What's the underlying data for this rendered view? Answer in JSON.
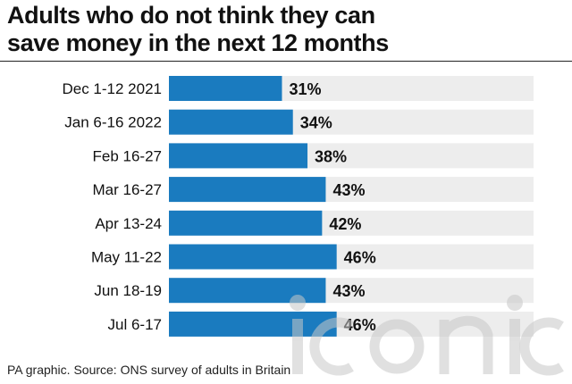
{
  "title_line1": "Adults who do not think they can",
  "title_line2": "save money in the next 12 months",
  "source": "PA graphic. Source: ONS survey of adults in Britain",
  "watermark_text": "iconic",
  "colors": {
    "bar": "#1a7bbf",
    "track": "#ededed",
    "text": "#111111"
  },
  "chart_data": {
    "type": "bar",
    "orientation": "horizontal",
    "title": "Adults who do not think they can save money in the next 12 months",
    "categories": [
      "Dec 1-12 2021",
      "Jan 6-16 2022",
      "Feb 16-27",
      "Mar 16-27",
      "Apr 13-24",
      "May 11-22",
      "Jun 18-19",
      "Jul 6-17"
    ],
    "values": [
      31,
      34,
      38,
      43,
      42,
      46,
      43,
      46
    ],
    "value_labels": [
      "31%",
      "34%",
      "38%",
      "43%",
      "42%",
      "46%",
      "43%",
      "46%"
    ],
    "unit": "%",
    "xlim": [
      0,
      100
    ],
    "xlabel": "",
    "ylabel": "",
    "grid": false,
    "legend": "none"
  }
}
